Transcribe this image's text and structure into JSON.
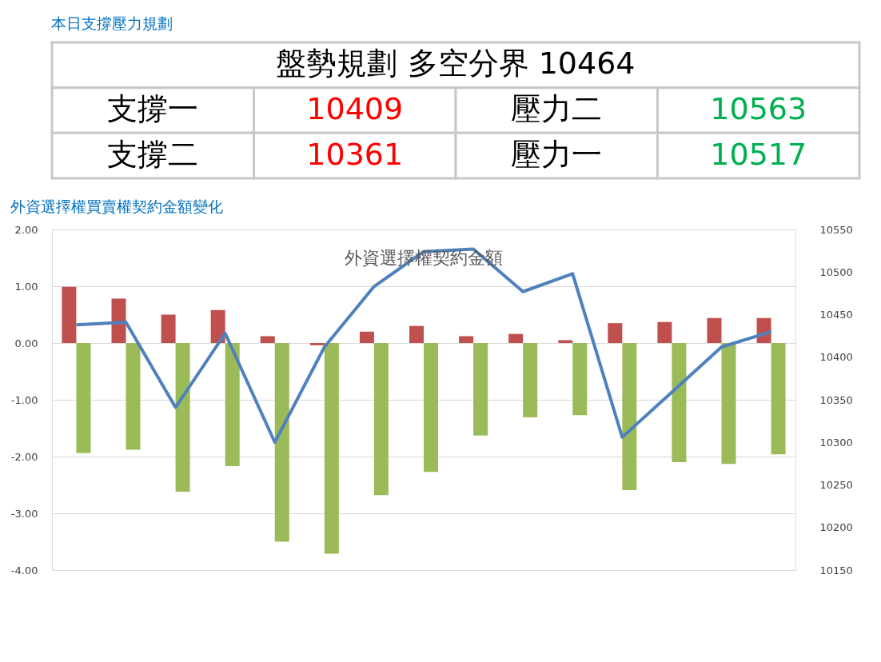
{
  "chart_data": [
    {
      "type": "other",
      "title": "本日支撐壓力規劃",
      "subtitle": "盤勢規劃 多空分界 10464",
      "annotations": [
        "支撐一",
        "10409",
        "壓力二",
        "10563",
        "支撐二",
        "10361",
        "壓力一",
        "10517"
      ],
      "colors": [
        "#000000",
        "#ff0000",
        "#000000",
        "#00b050",
        "#000000",
        "#ff0000",
        "#000000",
        "#00b050"
      ]
    },
    {
      "type": "bar",
      "title": "外資選擇權買賣權契約金額變化",
      "annotations": [
        "外資選擇權契約金額"
      ],
      "categories": [
        null,
        null,
        null,
        null,
        null,
        null,
        null,
        null,
        null,
        null,
        null,
        null,
        null,
        null,
        null
      ],
      "series": [
        {
          "color": "#c0504d",
          "values": [
            0.99,
            0.78,
            0.5,
            0.58,
            0.12,
            -0.04,
            0.2,
            0.3,
            0.12,
            0.16,
            0.05,
            0.35,
            0.37,
            0.44,
            0.44
          ]
        },
        {
          "color": "#9bbb59",
          "values": [
            -1.94,
            -1.88,
            -2.62,
            -2.17,
            -3.5,
            -3.71,
            -2.68,
            -2.27,
            -1.63,
            -1.31,
            -1.27,
            -2.59,
            -2.1,
            -2.13,
            -1.96
          ]
        },
        {
          "type": "line",
          "axis": "y2",
          "color": "#4f81bd",
          "values": [
            10438,
            10441,
            10341,
            10428,
            10300,
            10412,
            10483,
            10524,
            10527,
            10477,
            10498,
            10306,
            10359,
            10412,
            10430
          ]
        }
      ],
      "ylim": [
        -4,
        2
      ],
      "yticks": [
        {
          "value": -4,
          "label": "-4.00"
        },
        {
          "value": -3,
          "label": "-3.00"
        },
        {
          "value": -2,
          "label": "-2.00"
        },
        {
          "value": -1,
          "label": "-1.00"
        },
        {
          "value": 0,
          "label": "0.00"
        },
        {
          "value": 1,
          "label": "1.00"
        },
        {
          "value": 2,
          "label": "2.00"
        }
      ],
      "y2lim": [
        10150,
        10550
      ],
      "y2ticks": [
        10150,
        10200,
        10250,
        10300,
        10350,
        10400,
        10450,
        10500,
        10550
      ],
      "grid": "y"
    }
  ]
}
